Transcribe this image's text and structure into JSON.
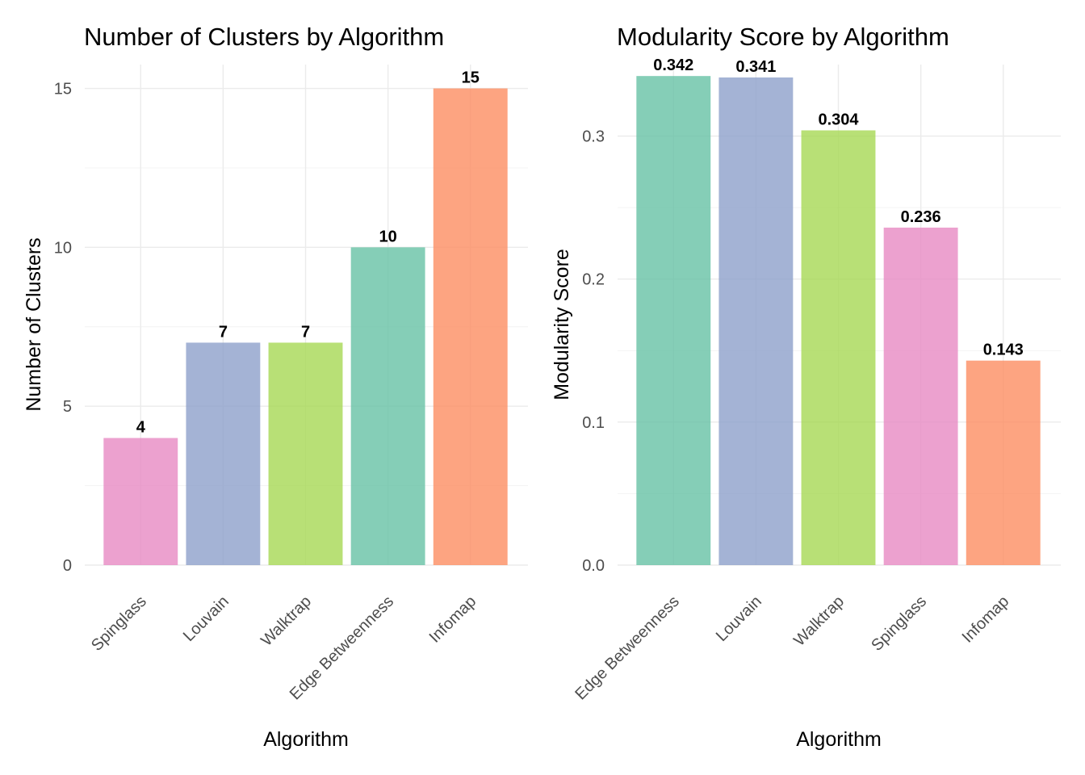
{
  "colors": {
    "Edge Betweenness": "#66c2a5",
    "Louvain": "#8da0cb",
    "Walktrap": "#a6d854",
    "Spinglass": "#e78ac3",
    "Infomap": "#fc8d62"
  },
  "chart_data": [
    {
      "type": "bar",
      "title": "Number of Clusters by Algorithm",
      "xlabel": "Algorithm",
      "ylabel": "Number of Clusters",
      "categories": [
        "Spinglass",
        "Louvain",
        "Walktrap",
        "Edge Betweenness",
        "Infomap"
      ],
      "values": [
        4,
        7,
        7,
        10,
        15
      ],
      "value_labels": [
        "4",
        "7",
        "7",
        "10",
        "15"
      ],
      "yticks": [
        0,
        5,
        10,
        15
      ],
      "ytick_labels": [
        "0",
        "5",
        "10",
        "15"
      ],
      "ylim": [
        0,
        15.75
      ],
      "grid": true,
      "legend": "none"
    },
    {
      "type": "bar",
      "title": "Modularity Score by Algorithm",
      "xlabel": "Algorithm",
      "ylabel": "Modularity Score",
      "categories": [
        "Edge Betweenness",
        "Louvain",
        "Walktrap",
        "Spinglass",
        "Infomap"
      ],
      "values": [
        0.342,
        0.341,
        0.304,
        0.236,
        0.143
      ],
      "value_labels": [
        "0.342",
        "0.341",
        "0.304",
        "0.236",
        "0.143"
      ],
      "yticks": [
        0,
        0.1,
        0.2,
        0.3
      ],
      "ytick_labels": [
        "0.0",
        "0.1",
        "0.2",
        "0.3"
      ],
      "ylim": [
        0,
        0.35
      ],
      "grid": true,
      "legend": "none"
    }
  ]
}
